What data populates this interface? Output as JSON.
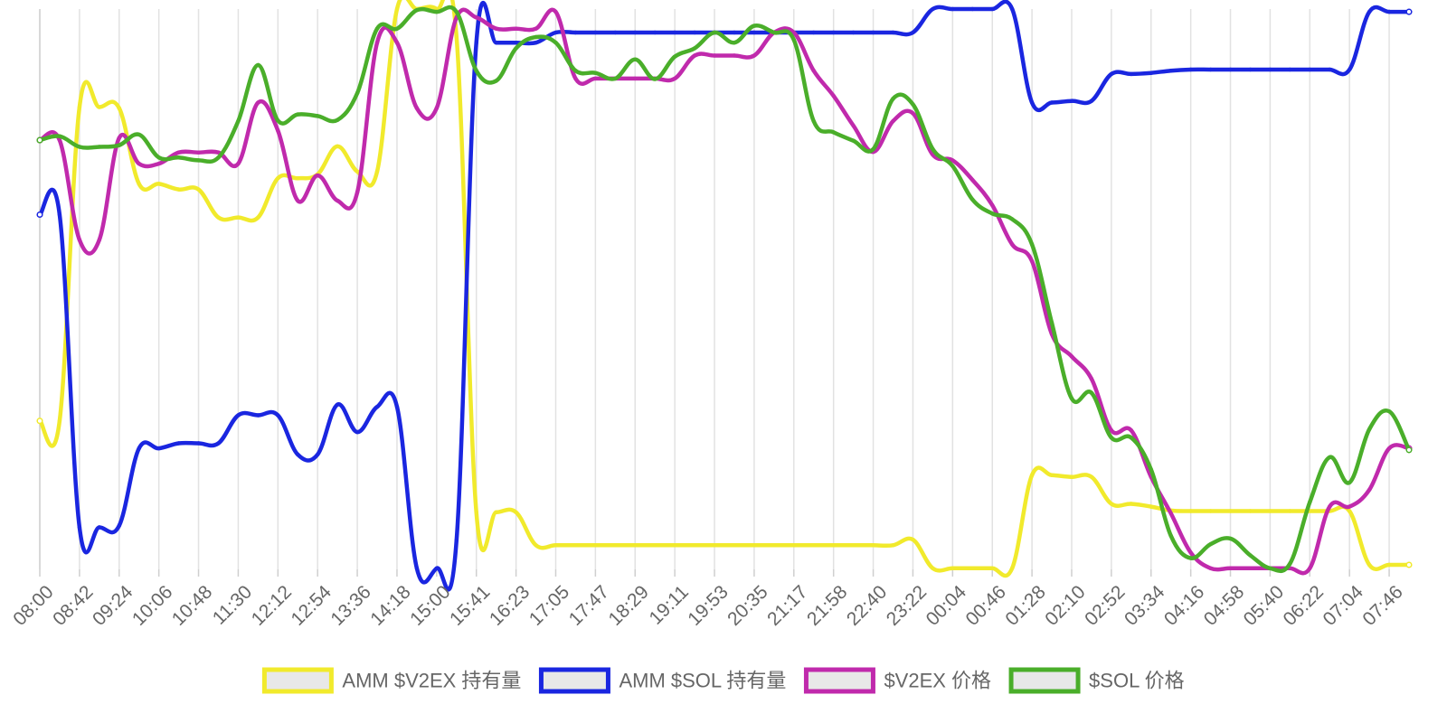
{
  "chart_data": {
    "type": "line",
    "title": "",
    "xlabel": "",
    "ylabel": "",
    "grid": true,
    "legend_position": "bottom",
    "x": [
      "08:00",
      "08:21",
      "08:42",
      "09:03",
      "09:24",
      "09:45",
      "10:06",
      "10:27",
      "10:48",
      "11:09",
      "11:30",
      "11:51",
      "12:12",
      "12:33",
      "12:54",
      "13:15",
      "13:36",
      "13:57",
      "14:18",
      "14:39",
      "15:00",
      "15:20",
      "15:41",
      "16:02",
      "16:23",
      "16:44",
      "17:05",
      "17:26",
      "17:47",
      "18:08",
      "18:29",
      "18:50",
      "19:11",
      "19:32",
      "19:53",
      "20:14",
      "20:35",
      "20:56",
      "21:17",
      "21:37",
      "21:58",
      "22:19",
      "22:40",
      "23:01",
      "23:22",
      "23:43",
      "00:04",
      "00:25",
      "00:46",
      "01:07",
      "01:28",
      "01:49",
      "02:10",
      "02:31",
      "02:52",
      "03:13",
      "03:34",
      "03:55",
      "04:16",
      "04:37",
      "04:58",
      "05:19",
      "05:40",
      "06:01",
      "06:22",
      "06:43",
      "07:04",
      "07:25",
      "07:46",
      "07:56"
    ],
    "x_tick_labels": [
      "08:00",
      "08:42",
      "09:24",
      "10:06",
      "10:48",
      "11:30",
      "12:12",
      "12:54",
      "13:36",
      "14:18",
      "15:00",
      "15:41",
      "16:23",
      "17:05",
      "17:47",
      "18:29",
      "19:11",
      "19:53",
      "20:35",
      "21:17",
      "21:58",
      "22:40",
      "23:22",
      "00:04",
      "00:46",
      "01:28",
      "02:10",
      "02:52",
      "03:34",
      "04:16",
      "04:58",
      "05:40",
      "06:22",
      "07:04",
      "07:46"
    ],
    "ylim": [
      0,
      100
    ],
    "series": [
      {
        "name": "AMM $V2EX 持有量",
        "color": "#f1ea2c",
        "values": [
          26.5,
          26.5,
          82.5,
          82.5,
          82.3,
          68.8,
          68.8,
          67.8,
          67.8,
          62.8,
          62.8,
          62.8,
          69.8,
          69.8,
          70.5,
          75.5,
          71.0,
          71.0,
          100,
          100,
          100,
          95,
          10.2,
          10.2,
          10.2,
          4.3,
          4.3,
          4.3,
          4.3,
          4.3,
          4.3,
          4.3,
          4.3,
          4.3,
          4.3,
          4.3,
          4.3,
          4.3,
          4.3,
          4.3,
          4.3,
          4.3,
          4.3,
          4.3,
          5.3,
          0.2,
          0.2,
          0.2,
          0.2,
          0.2,
          16.8,
          16.8,
          16.5,
          16.5,
          11.7,
          11.7,
          11.2,
          10.5,
          10.4,
          10.4,
          10.4,
          10.4,
          10.4,
          10.4,
          10.4,
          10.4,
          10.4,
          0.8,
          0.8,
          0.8
        ]
      },
      {
        "name": "AMM $SOL 持有量",
        "color": "#1a26e0",
        "values": [
          63.3,
          63.3,
          7.5,
          7.5,
          7.8,
          21.6,
          21.6,
          22.5,
          22.5,
          22.5,
          27.5,
          27.5,
          27.5,
          20.5,
          20.5,
          29.4,
          24.5,
          29.0,
          29.0,
          0.2,
          0.2,
          5.2,
          94.0,
          94.0,
          94.0,
          94.0,
          95.8,
          95.8,
          95.8,
          95.8,
          95.8,
          95.8,
          95.8,
          95.8,
          95.8,
          95.8,
          95.8,
          95.8,
          95.8,
          95.8,
          95.8,
          95.8,
          95.8,
          95.8,
          95.8,
          100,
          100,
          100,
          100,
          100,
          83.3,
          83.3,
          83.6,
          83.6,
          88.4,
          88.4,
          88.6,
          89.0,
          89.2,
          89.2,
          89.2,
          89.2,
          89.2,
          89.2,
          89.2,
          89.2,
          89.2,
          99.5,
          99.5,
          99.5
        ]
      },
      {
        "name": "$V2EX 价格",
        "color": "#c02aac",
        "values": [
          76.6,
          76.6,
          58.8,
          58.8,
          77.0,
          72.4,
          72.4,
          74.4,
          74.4,
          74.4,
          72.4,
          83.3,
          78.3,
          65.8,
          70.3,
          65.8,
          67.3,
          94.0,
          94.0,
          82.3,
          82.3,
          98.5,
          98.5,
          96.5,
          96.5,
          96.5,
          99.5,
          87.6,
          87.6,
          87.6,
          87.6,
          87.6,
          87.6,
          91.7,
          91.7,
          91.7,
          91.7,
          95.8,
          95.8,
          89.0,
          84.5,
          79.2,
          74.5,
          80.0,
          81.4,
          74.0,
          73.0,
          69.5,
          65.0,
          58.0,
          55.0,
          42.0,
          38.0,
          34.0,
          24.8,
          24.8,
          16.5,
          10.0,
          3.0,
          0.2,
          0.2,
          0.2,
          0.2,
          0.2,
          0.2,
          11.2,
          11.2,
          14.2,
          21.6,
          21.6
        ]
      },
      {
        "name": "$SOL 价格",
        "color": "#4aae2a",
        "values": [
          76.6,
          77.3,
          75.4,
          75.4,
          75.7,
          77.6,
          73.5,
          73.5,
          73.0,
          73.5,
          80.0,
          90.0,
          80.1,
          81.2,
          80.9,
          80.2,
          85.0,
          96.5,
          96.5,
          99.8,
          99.5,
          99.5,
          89.0,
          87.2,
          93.0,
          95.0,
          94.0,
          89.0,
          88.6,
          87.6,
          91.0,
          87.5,
          91.5,
          93.0,
          95.8,
          94.0,
          97.0,
          95.8,
          94.5,
          80.0,
          78.0,
          76.5,
          75.0,
          84.0,
          83.0,
          75.0,
          72.0,
          66.0,
          63.5,
          62.5,
          58.0,
          44.0,
          30.5,
          31.5,
          23.5,
          23.5,
          17.8,
          6.0,
          2.0,
          4.5,
          5.5,
          2.5,
          0.2,
          1.0,
          12.0,
          20.0,
          15.5,
          25.0,
          28.2,
          21.3
        ]
      }
    ]
  }
}
